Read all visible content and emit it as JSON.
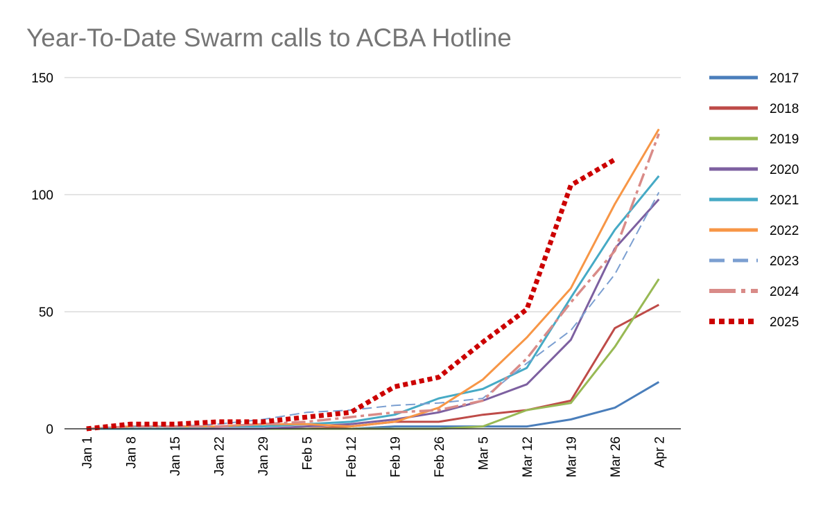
{
  "chart_data": {
    "type": "line",
    "title": "Year-To-Date Swarm calls to ACBA Hotline",
    "xlabel": "",
    "ylabel": "",
    "categories": [
      "Jan 1",
      "Jan 8",
      "Jan 15",
      "Jan 22",
      "Jan 29",
      "Feb 5",
      "Feb 12",
      "Feb 19",
      "Feb 26",
      "Mar 5",
      "Mar 12",
      "Mar 19",
      "Mar 26",
      "Apr 2"
    ],
    "ylim": [
      0,
      150
    ],
    "yticks": [
      0,
      50,
      100,
      150
    ],
    "grid": true,
    "legend_position": "right",
    "series": [
      {
        "name": "2017",
        "color": "#4a7ebb",
        "style": "solid",
        "values": [
          0,
          0,
          0,
          0,
          0,
          0,
          0,
          1,
          1,
          1,
          1,
          4,
          9,
          20
        ]
      },
      {
        "name": "2018",
        "color": "#be4b48",
        "style": "solid",
        "values": [
          0,
          0,
          0,
          0,
          0,
          0,
          1,
          3,
          3,
          6,
          8,
          12,
          43,
          53
        ]
      },
      {
        "name": "2019",
        "color": "#98b954",
        "style": "solid",
        "values": [
          0,
          0,
          0,
          0,
          0,
          0,
          0,
          0,
          0,
          1,
          8,
          11,
          35,
          64
        ]
      },
      {
        "name": "2020",
        "color": "#7d60a0",
        "style": "solid",
        "values": [
          0,
          0,
          0,
          0,
          0,
          1,
          2,
          4,
          7,
          12,
          19,
          38,
          77,
          98
        ]
      },
      {
        "name": "2021",
        "color": "#46aac5",
        "style": "solid",
        "values": [
          0,
          0,
          0,
          1,
          1,
          2,
          3,
          6,
          13,
          17,
          26,
          56,
          85,
          108
        ]
      },
      {
        "name": "2022",
        "color": "#f79646",
        "style": "solid",
        "values": [
          0,
          1,
          1,
          1,
          2,
          2,
          1,
          3,
          9,
          21,
          39,
          60,
          96,
          128
        ]
      },
      {
        "name": "2023",
        "color": "#7b9fd1",
        "style": "dashed",
        "values": [
          0,
          1,
          1,
          2,
          4,
          7,
          8,
          10,
          11,
          13,
          28,
          42,
          66,
          101
        ]
      },
      {
        "name": "2024",
        "color": "#d98b88",
        "style": "dashdot",
        "values": [
          0,
          1,
          1,
          1,
          2,
          3,
          5,
          7,
          8,
          12,
          30,
          54,
          76,
          126
        ]
      },
      {
        "name": "2025",
        "color": "#cc0000",
        "style": "dotted",
        "values": [
          0,
          2,
          2,
          3,
          3,
          5,
          7,
          18,
          22,
          37,
          51,
          104,
          115,
          null
        ]
      }
    ]
  }
}
